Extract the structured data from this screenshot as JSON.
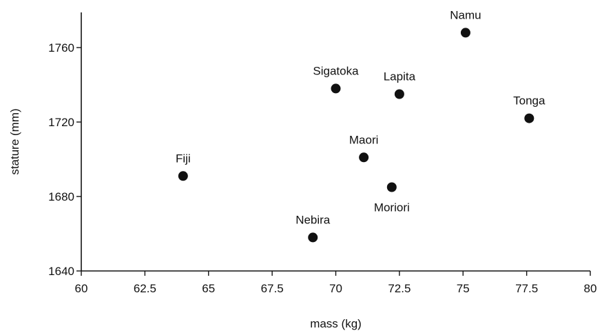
{
  "chart_data": {
    "type": "scatter",
    "title": "",
    "xlabel": "mass (kg)",
    "ylabel": "stature (mm)",
    "xlim": [
      60,
      80
    ],
    "ylim": [
      1640,
      1780
    ],
    "x_ticks": [
      60,
      62.5,
      65,
      67.5,
      70,
      72.5,
      75,
      77.5,
      80
    ],
    "x_tick_labels": [
      "60",
      "62.5",
      "65",
      "67.5",
      "70",
      "72.5",
      "75",
      "77.5",
      "80"
    ],
    "y_ticks": [
      1640,
      1680,
      1720,
      1760
    ],
    "y_tick_labels": [
      "1640",
      "1680",
      "1720",
      "1760"
    ],
    "grid": false,
    "legend": "none",
    "marker_color": "#111111",
    "points": [
      {
        "label": "Namu",
        "x": 75.1,
        "y": 1768,
        "label_position": "above"
      },
      {
        "label": "Sigatoka",
        "x": 70.0,
        "y": 1738,
        "label_position": "above"
      },
      {
        "label": "Lapita",
        "x": 72.5,
        "y": 1735,
        "label_position": "above"
      },
      {
        "label": "Tonga",
        "x": 77.6,
        "y": 1722,
        "label_position": "above"
      },
      {
        "label": "Maori",
        "x": 71.1,
        "y": 1701,
        "label_position": "above"
      },
      {
        "label": "Fiji",
        "x": 64.0,
        "y": 1691,
        "label_position": "above"
      },
      {
        "label": "Moriori",
        "x": 72.2,
        "y": 1685,
        "label_position": "below"
      },
      {
        "label": "Nebira",
        "x": 69.1,
        "y": 1658,
        "label_position": "above"
      }
    ]
  }
}
